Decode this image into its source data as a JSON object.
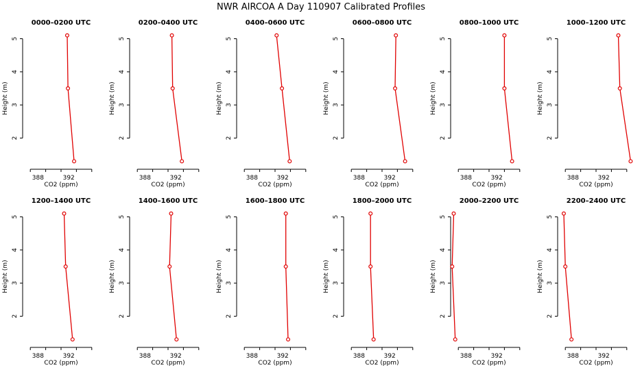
{
  "title": "NWR AIRCOA A  Day 110907  Calibrated Profiles",
  "chart_data": {
    "type": "line",
    "xlabel": "CO2 (ppm)",
    "ylabel": "Height (m)",
    "xlim": [
      386,
      396
    ],
    "ylim": [
      1.1,
      5.3
    ],
    "xticks": [
      388,
      392
    ],
    "yticks": [
      2,
      3,
      4,
      5
    ],
    "line_color": "#e00000",
    "panels": [
      {
        "title": "0000–0200 UTC",
        "x": [
          391.8,
          391.9,
          392.7
        ],
        "y": [
          5.1,
          3.5,
          1.3
        ]
      },
      {
        "title": "0200–0400 UTC",
        "x": [
          391.5,
          391.6,
          392.8
        ],
        "y": [
          5.1,
          3.5,
          1.3
        ]
      },
      {
        "title": "0400–0600 UTC",
        "x": [
          391.2,
          391.9,
          392.9
        ],
        "y": [
          5.1,
          3.5,
          1.3
        ]
      },
      {
        "title": "0600–0800 UTC",
        "x": [
          392.8,
          392.7,
          394.0
        ],
        "y": [
          5.1,
          3.5,
          1.3
        ]
      },
      {
        "title": "0800–1000 UTC",
        "x": [
          393.0,
          393.0,
          394.0
        ],
        "y": [
          5.1,
          3.5,
          1.3
        ]
      },
      {
        "title": "1000–1200 UTC",
        "x": [
          393.9,
          394.1,
          395.5
        ],
        "y": [
          5.1,
          3.5,
          1.3
        ]
      },
      {
        "title": "1200–1400 UTC",
        "x": [
          391.4,
          391.6,
          392.5
        ],
        "y": [
          5.1,
          3.5,
          1.3
        ]
      },
      {
        "title": "1400–1600 UTC",
        "x": [
          391.4,
          391.2,
          392.1
        ],
        "y": [
          5.1,
          3.5,
          1.3
        ]
      },
      {
        "title": "1600–1800 UTC",
        "x": [
          392.4,
          392.4,
          392.7
        ],
        "y": [
          5.1,
          3.5,
          1.3
        ]
      },
      {
        "title": "1800–2000 UTC",
        "x": [
          389.5,
          389.5,
          389.9
        ],
        "y": [
          5.1,
          3.5,
          1.3
        ]
      },
      {
        "title": "2000–2200 UTC",
        "x": [
          386.4,
          386.2,
          386.6
        ],
        "y": [
          5.1,
          3.5,
          1.3
        ]
      },
      {
        "title": "2200–2400 UTC",
        "x": [
          386.8,
          387.0,
          387.8
        ],
        "y": [
          5.1,
          3.5,
          1.3
        ]
      }
    ]
  }
}
